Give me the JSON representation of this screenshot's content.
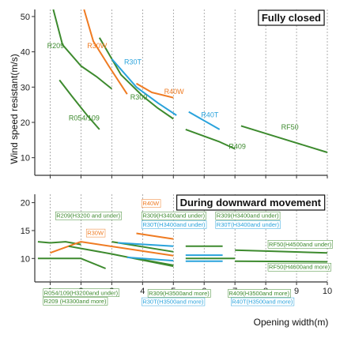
{
  "colors": {
    "green": "#3d8a2e",
    "orange": "#ef7b22",
    "blue": "#2aa3dc",
    "axis": "#333333",
    "grid": "#7a7a7a"
  },
  "y_axis_label": "Wind speed resistant(m/s)",
  "x_axis_label": "Opening width(m)",
  "chart_data": [
    {
      "type": "line",
      "title": "Fully closed",
      "xlim": [
        0.5,
        10
      ],
      "ylim": [
        5,
        52
      ],
      "yticks": [
        10,
        20,
        30,
        40,
        50
      ],
      "xticks": [
        1,
        2,
        3,
        4,
        5,
        6,
        7,
        8,
        9,
        10
      ],
      "grid": "vertical",
      "series": [
        {
          "name": "R209",
          "color": "green",
          "points": [
            [
              1.1,
              52
            ],
            [
              1.4,
              42
            ],
            [
              2.0,
              36
            ],
            [
              2.5,
              33
            ],
            [
              3.0,
              29.5
            ]
          ]
        },
        {
          "name": "R054/109",
          "color": "green",
          "points": [
            [
              1.3,
              32
            ],
            [
              1.7,
              27.5
            ],
            [
              2.2,
              22
            ],
            [
              2.6,
              18
            ]
          ]
        },
        {
          "name": "R30W",
          "color": "orange",
          "points": [
            [
              2.1,
              52
            ],
            [
              2.4,
              43
            ],
            [
              2.9,
              36
            ],
            [
              3.2,
              32
            ],
            [
              3.5,
              28
            ]
          ]
        },
        {
          "name": "R309",
          "color": "green",
          "points": [
            [
              2.6,
              44
            ],
            [
              3.3,
              33.5
            ],
            [
              4.0,
              27.5
            ],
            [
              4.5,
              24
            ],
            [
              5.0,
              21
            ]
          ]
        },
        {
          "name": "R30T",
          "color": "blue",
          "points": [
            [
              3.0,
              38
            ],
            [
              3.8,
              30
            ],
            [
              4.5,
              25.5
            ],
            [
              5.1,
              22
            ]
          ]
        },
        {
          "name": "R40W",
          "color": "orange",
          "points": [
            [
              3.8,
              31
            ],
            [
              4.3,
              28.5
            ],
            [
              5.0,
              27
            ]
          ]
        },
        {
          "name": "R40T",
          "color": "blue",
          "points": [
            [
              5.5,
              23
            ],
            [
              6.5,
              18
            ]
          ]
        },
        {
          "name": "R409",
          "color": "green",
          "points": [
            [
              5.4,
              18
            ],
            [
              6.5,
              14.5
            ],
            [
              7.0,
              12.5
            ]
          ]
        },
        {
          "name": "RF50",
          "color": "green",
          "points": [
            [
              7.2,
              19
            ],
            [
              8.5,
              15.5
            ],
            [
              10.0,
              11.5
            ]
          ]
        }
      ],
      "labels": [
        {
          "text": "R209",
          "x": 0.9,
          "y": 41,
          "color": "green"
        },
        {
          "text": "R30W",
          "x": 2.2,
          "y": 41,
          "color": "orange"
        },
        {
          "text": "R30T",
          "x": 3.4,
          "y": 36.5,
          "color": "blue"
        },
        {
          "text": "R309",
          "x": 3.6,
          "y": 26.5,
          "color": "green"
        },
        {
          "text": "R054/109",
          "x": 1.6,
          "y": 20.5,
          "color": "green"
        },
        {
          "text": "R40W",
          "x": 4.7,
          "y": 28,
          "color": "orange"
        },
        {
          "text": "R40T",
          "x": 5.9,
          "y": 21.5,
          "color": "blue"
        },
        {
          "text": "R409",
          "x": 6.8,
          "y": 12.5,
          "color": "green"
        },
        {
          "text": "RF50",
          "x": 8.5,
          "y": 18,
          "color": "green"
        }
      ]
    },
    {
      "type": "line",
      "title": "During downward movement",
      "xlim": [
        0.5,
        10
      ],
      "ylim": [
        5.8,
        21.5
      ],
      "yticks": [
        10,
        15,
        20
      ],
      "xticks": [
        1,
        2,
        3,
        4,
        5,
        6,
        7,
        8,
        9,
        10
      ],
      "grid": "vertical",
      "series": [
        {
          "name": "R209(H3200 and under)",
          "color": "green",
          "points": [
            [
              0.6,
              13
            ],
            [
              1.0,
              12.8
            ],
            [
              1.5,
              13
            ],
            [
              2.0,
              12.5
            ]
          ]
        },
        {
          "name": "R209(H3300 and more)",
          "color": "green",
          "points": [
            [
              0.6,
              10
            ],
            [
              2.0,
              10
            ],
            [
              2.8,
              8.2
            ]
          ]
        },
        {
          "name": "R30W",
          "color": "orange",
          "points": [
            [
              1.0,
              11
            ],
            [
              2.0,
              13
            ],
            [
              5.0,
              10.5
            ]
          ]
        },
        {
          "name": "R40W",
          "color": "orange",
          "points": [
            [
              3.8,
              14.5
            ],
            [
              5.0,
              13.5
            ]
          ]
        },
        {
          "name": "R309(H3400and under)",
          "color": "green",
          "points": [
            [
              3.0,
              13
            ],
            [
              5.0,
              11.2
            ]
          ]
        },
        {
          "name": "R30T(H3400and under)",
          "color": "blue",
          "points": [
            [
              3.2,
              12.8
            ],
            [
              5.0,
              12.2
            ]
          ]
        },
        {
          "name": "R054/109(H3200and under)",
          "color": "green",
          "points": [
            [
              1.6,
              12.2
            ],
            [
              3.0,
              10.8
            ],
            [
              5.0,
              8.6
            ]
          ]
        },
        {
          "name": "R309(H3500and more)",
          "color": "green",
          "points": [
            [
              3.8,
              10
            ],
            [
              5.0,
              8.8
            ]
          ]
        },
        {
          "name": "R30T(H3500and more)",
          "color": "blue",
          "points": [
            [
              3.5,
              10.2
            ],
            [
              5.0,
              9.6
            ]
          ]
        },
        {
          "name": "R309(H3400and under) right",
          "color": "green",
          "points": [
            [
              5.4,
              12.2
            ],
            [
              6.6,
              12.2
            ]
          ]
        },
        {
          "name": "R30T(H3400and under) right",
          "color": "blue",
          "points": [
            [
              5.4,
              10.6
            ],
            [
              6.6,
              10.6
            ]
          ]
        },
        {
          "name": "R409(H3500and more)",
          "color": "green",
          "points": [
            [
              5.4,
              10.0
            ],
            [
              7.0,
              10.0
            ]
          ]
        },
        {
          "name": "R40T(H3500and more)",
          "color": "blue",
          "points": [
            [
              5.4,
              9.5
            ],
            [
              6.6,
              9.5
            ]
          ]
        },
        {
          "name": "RF50(H4500and under)",
          "color": "green",
          "points": [
            [
              7.0,
              11.5
            ],
            [
              10.0,
              11.0
            ]
          ]
        },
        {
          "name": "RF50(H4600and more)",
          "color": "green",
          "points": [
            [
              7.0,
              9.5
            ],
            [
              10.0,
              9.4
            ]
          ]
        }
      ],
      "labels": [
        {
          "text": "R209(H3200 and under)",
          "x": 1.2,
          "y": 17.3,
          "color": "green"
        },
        {
          "text": "R40W",
          "x": 4.0,
          "y": 19.5,
          "color": "orange"
        },
        {
          "text": "R309(H3400and under)",
          "x": 4.0,
          "y": 17.3,
          "color": "green"
        },
        {
          "text": "R30T(H3400and under)",
          "x": 4.0,
          "y": 15.7,
          "color": "blue"
        },
        {
          "text": "R309(H3400and under)",
          "x": 6.4,
          "y": 17.3,
          "color": "green"
        },
        {
          "text": "R30T(H3400and under)",
          "x": 6.4,
          "y": 15.7,
          "color": "blue"
        },
        {
          "text": "R30W",
          "x": 2.2,
          "y": 14.2,
          "color": "orange"
        },
        {
          "text": "RF50(H4500and under)",
          "x": 8.1,
          "y": 12.2,
          "color": "green"
        },
        {
          "text": "RF50(H4600and more)",
          "x": 8.1,
          "y": 8.1,
          "color": "green"
        },
        {
          "text": "R054/109(H3200and under)",
          "x": 0.8,
          "y": 3.5,
          "color": "green"
        },
        {
          "text": "R209 (H3300and more)",
          "x": 0.8,
          "y": 2.0,
          "color": "green"
        },
        {
          "text": "R309(H3500and more)",
          "x": 4.2,
          "y": 3.4,
          "color": "green"
        },
        {
          "text": "R30T(H3500and more)",
          "x": 4.0,
          "y": 1.9,
          "color": "blue"
        },
        {
          "text": "R409(H3500and more)",
          "x": 6.8,
          "y": 3.4,
          "color": "green"
        },
        {
          "text": "R40T(H3500and more)",
          "x": 6.9,
          "y": 1.9,
          "color": "blue"
        }
      ]
    }
  ]
}
